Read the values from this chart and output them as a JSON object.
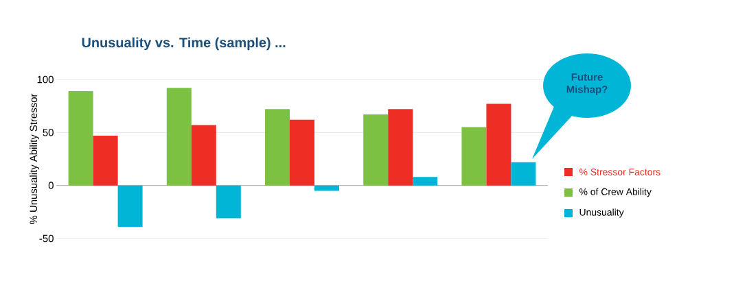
{
  "chart_data": {
    "type": "bar",
    "title": "Unusuality vs. Time (sample) ...",
    "ylabel": "% Unusuality Ability Stressor",
    "categories": [
      null,
      null,
      null,
      null,
      null
    ],
    "series": [
      {
        "name": "% of Crew Ability",
        "color": "#7dc142",
        "values": [
          89,
          92,
          72,
          67,
          55
        ]
      },
      {
        "name": "% Stressor Factors",
        "color": "#ee2d24",
        "values": [
          47,
          57,
          62,
          72,
          77
        ]
      },
      {
        "name": "Unusuality",
        "color": "#00b5d6",
        "values": [
          -39,
          -31,
          -5,
          8,
          22
        ]
      }
    ],
    "ylim": [
      -50,
      100
    ],
    "yticks": [
      -50,
      0,
      50,
      100
    ],
    "grid": "y",
    "legend": "right",
    "tick_labels": "y",
    "annotations": [
      "Future Mishap?"
    ]
  }
}
